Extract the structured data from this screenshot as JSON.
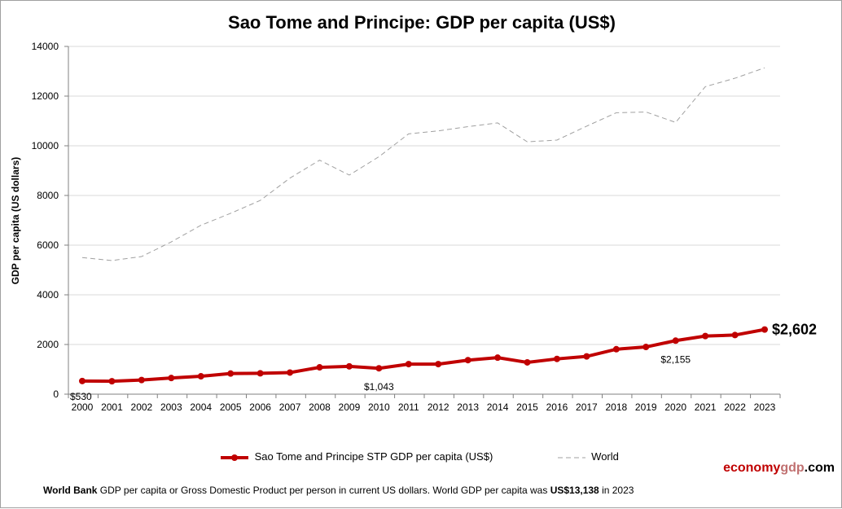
{
  "chart_data": {
    "type": "line",
    "title": "Sao Tome and Principe: GDP per capita (US$)",
    "ylabel": "GDP per capita (US dollars)",
    "xlabel": "",
    "ylim": [
      0,
      14000
    ],
    "yticks": [
      0,
      2000,
      4000,
      6000,
      8000,
      10000,
      12000,
      14000
    ],
    "grid": true,
    "legend_position": "bottom",
    "categories": [
      "2000",
      "2001",
      "2002",
      "2003",
      "2004",
      "2005",
      "2006",
      "2007",
      "2008",
      "2009",
      "2010",
      "2011",
      "2012",
      "2013",
      "2014",
      "2015",
      "2016",
      "2017",
      "2018",
      "2019",
      "2020",
      "2021",
      "2022",
      "2023"
    ],
    "series": [
      {
        "name": "Sao Tome and Principe STP GDP per capita (US$)",
        "color": "#c00000",
        "values": [
          530,
          520,
          570,
          650,
          720,
          830,
          840,
          870,
          1080,
          1120,
          1043,
          1210,
          1210,
          1370,
          1470,
          1280,
          1420,
          1520,
          1810,
          1900,
          2155,
          2340,
          2380,
          2602
        ]
      },
      {
        "name": "World",
        "color": "#a0a0a0",
        "values": [
          5500,
          5380,
          5540,
          6130,
          6800,
          7280,
          7800,
          8700,
          9420,
          8820,
          9560,
          10480,
          10600,
          10770,
          10920,
          10160,
          10230,
          10790,
          11330,
          11360,
          10940,
          12380,
          12720,
          13138
        ]
      }
    ],
    "annotations": [
      {
        "year": "2000",
        "text": "$530"
      },
      {
        "year": "2010",
        "text": "$1,043"
      },
      {
        "year": "2020",
        "text": "$2,155"
      },
      {
        "year": "2023",
        "text": "$2,602"
      }
    ]
  },
  "brand": {
    "part1": "economy",
    "part2": "gdp",
    "part3": ".com"
  },
  "footer": {
    "source": "World Bank",
    "text1": " GDP per capita or Gross Domestic Product per person  in current US dollars.   World GDP per capita was ",
    "value": "US$13,138",
    "text2": "  in 2023"
  }
}
